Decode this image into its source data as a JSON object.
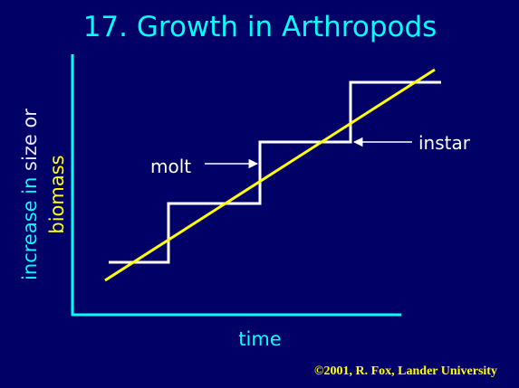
{
  "header": {
    "title": "17.  Growth in Arthropods"
  },
  "diagram": {
    "y_label": {
      "part1": "increase in ",
      "part2": "size or",
      "part3": "biomass"
    },
    "x_label": "time",
    "labels": {
      "molt": "molt",
      "instar": "instar"
    }
  },
  "footer": {
    "copyright": "©2001, R. Fox, Lander University"
  }
}
